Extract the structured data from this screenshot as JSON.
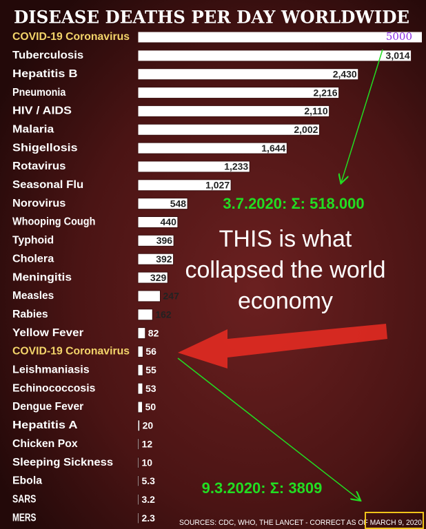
{
  "chart_data": {
    "type": "hbar",
    "title": "DISEASE DEATHS PER DAY WORLDWIDE",
    "categories": [
      "COVID-19 Coronavirus",
      "Tuberculosis",
      "Hepatitis B",
      "Pneumonia",
      "HIV / AIDS",
      "Malaria",
      "Shigellosis",
      "Rotavirus",
      "Seasonal Flu",
      "Norovirus",
      "Whooping Cough",
      "Typhoid",
      "Cholera",
      "Meningitis",
      "Measles",
      "Rabies",
      "Yellow Fever",
      "COVID-19 Coronavirus",
      "Leishmaniasis",
      "Echinococcosis",
      "Dengue Fever",
      "Hepatitis A",
      "Chicken Pox",
      "Sleeping Sickness",
      "Ebola",
      "SARS",
      "MERS"
    ],
    "values": [
      5000,
      3014,
      2430,
      2216,
      2110,
      2002,
      1644,
      1233,
      1027,
      548,
      440,
      396,
      392,
      329,
      247,
      162,
      82,
      56,
      55,
      53,
      50,
      20,
      12,
      10,
      5.3,
      3.2,
      2.3
    ],
    "value_labels": [
      "5000",
      "3,014",
      "2,430",
      "2,216",
      "2,110",
      "2,002",
      "1,644",
      "1,233",
      "1,027",
      "548",
      "440",
      "396",
      "392",
      "329",
      "247",
      "162",
      "82",
      "56",
      "55",
      "53",
      "50",
      "20",
      "12",
      "10",
      "5.3",
      "3.2",
      "2.3"
    ],
    "label_colors": [
      "#f3d46a",
      "#ffffff",
      "#ffffff",
      "#ffffff",
      "#ffffff",
      "#ffffff",
      "#ffffff",
      "#ffffff",
      "#ffffff",
      "#ffffff",
      "#ffffff",
      "#ffffff",
      "#ffffff",
      "#ffffff",
      "#ffffff",
      "#ffffff",
      "#ffffff",
      "#f3d46a",
      "#ffffff",
      "#ffffff",
      "#ffffff",
      "#ffffff",
      "#ffffff",
      "#ffffff",
      "#ffffff",
      "#ffffff",
      "#ffffff"
    ],
    "color": "#ffffff",
    "xlim": [
      0,
      3040
    ],
    "annotations": [
      "3.7.2020: Σ: 518.000",
      "THIS is what",
      "collapsed the world",
      "economy",
      "9.3.2020: Σ: 3809"
    ],
    "source": "SOURCES: CDC, WHO, THE LANCET - CORRECT AS OF MARCH 9, 2020"
  }
}
